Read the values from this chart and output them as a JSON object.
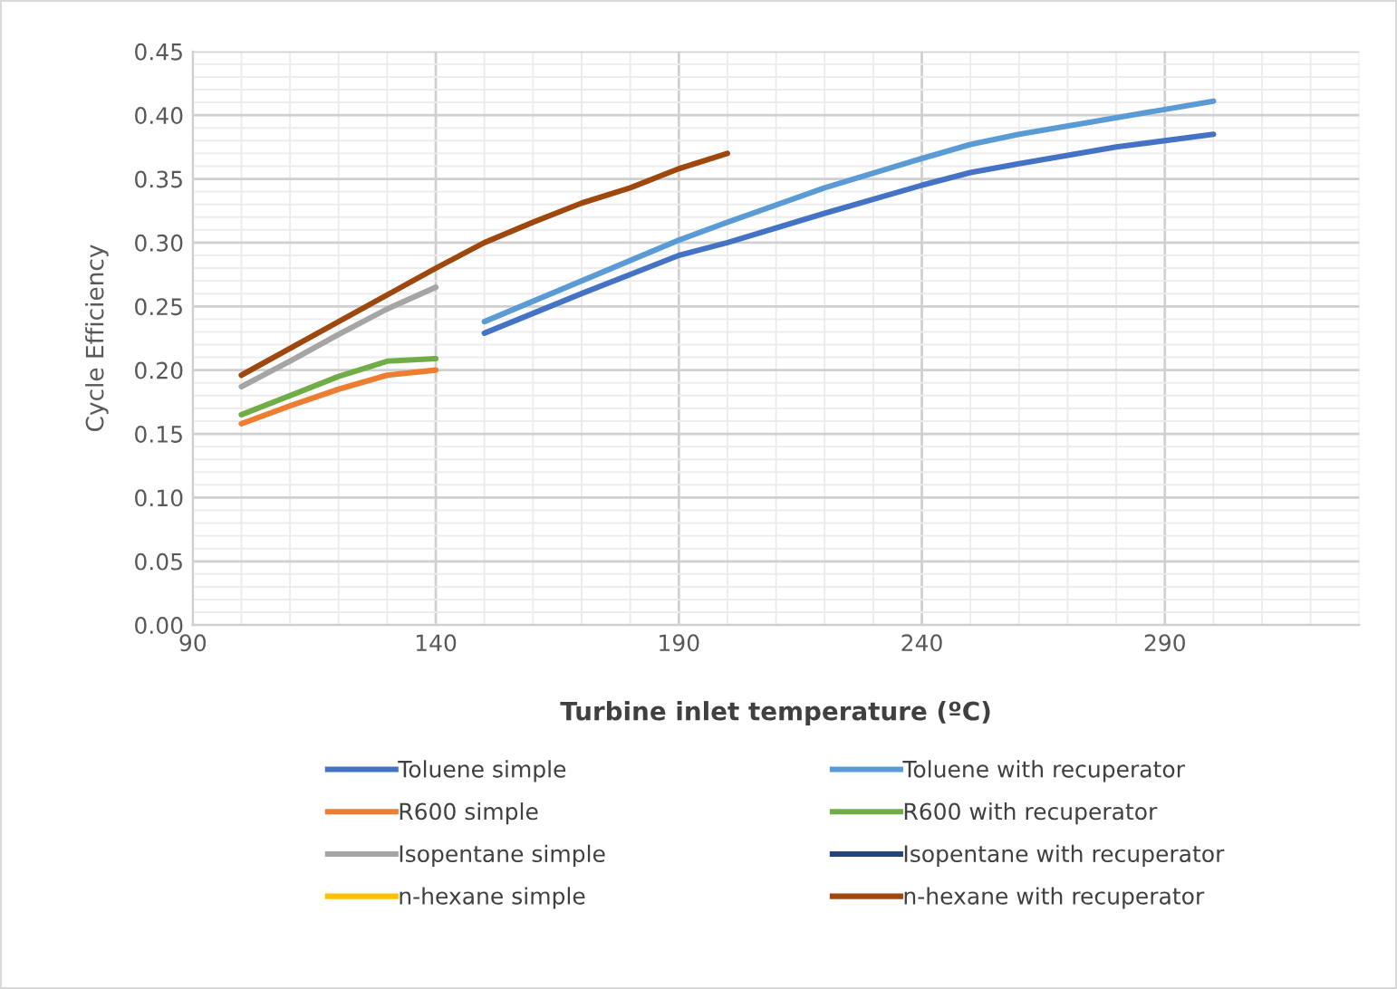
{
  "chart_data": {
    "type": "line",
    "xlabel": "Turbine inlet temperature (ºC)",
    "ylabel": "Cycle Efficiency",
    "xlim": [
      90,
      330
    ],
    "xticks": [
      90,
      140,
      190,
      240,
      290
    ],
    "ylim": [
      0,
      0.45
    ],
    "yticks": [
      {
        "value": 0,
        "label": "0.00"
      },
      {
        "value": 0.05,
        "label": "0.05"
      },
      {
        "value": 0.1,
        "label": "0.10"
      },
      {
        "value": 0.15,
        "label": "0.15"
      },
      {
        "value": 0.2,
        "label": "0.20"
      },
      {
        "value": 0.25,
        "label": "0.25"
      },
      {
        "value": 0.3,
        "label": "0.30"
      },
      {
        "value": 0.35,
        "label": "0.35"
      },
      {
        "value": 0.4,
        "label": "0.40"
      },
      {
        "value": 0.45,
        "label": "0.45"
      }
    ],
    "grid": true,
    "legend": "bottom",
    "marker": "none",
    "line_style": "solid",
    "series": [
      {
        "name": "Toluene simple",
        "color": "#4472c4",
        "x": [
          150,
          170,
          190,
          200,
          220,
          240,
          250,
          260,
          280,
          300
        ],
        "values": [
          0.229,
          0.26,
          0.29,
          0.3,
          0.323,
          0.345,
          0.355,
          0.362,
          0.375,
          0.385
        ]
      },
      {
        "name": "Toluene with recuperator",
        "color": "#5b9bd5",
        "x": [
          150,
          170,
          190,
          200,
          220,
          240,
          250,
          260,
          280,
          300
        ],
        "values": [
          0.238,
          0.27,
          0.302,
          0.316,
          0.343,
          0.366,
          0.377,
          0.385,
          0.398,
          0.411
        ]
      },
      {
        "name": "R600 simple",
        "color": "#ed7d31",
        "x": [
          100,
          110,
          120,
          130,
          140
        ],
        "values": [
          0.158,
          0.172,
          0.185,
          0.196,
          0.2
        ]
      },
      {
        "name": "R600 with recuperator",
        "color": "#70ad47",
        "x": [
          100,
          110,
          120,
          130,
          140
        ],
        "values": [
          0.165,
          0.18,
          0.195,
          0.207,
          0.209
        ]
      },
      {
        "name": "Isopentane simple",
        "color": "#a5a5a5",
        "x": [
          100,
          110,
          120,
          130,
          140
        ],
        "values": [
          0.187,
          0.207,
          0.228,
          0.248,
          0.265
        ]
      },
      {
        "name": "Isopentane with recuperator",
        "color": "#264478"
      },
      {
        "name": "n-hexane simple",
        "color": "#ffc000"
      },
      {
        "name": "n-hexane with recuperator",
        "color": "#9e480e",
        "x": [
          100,
          120,
          140,
          150,
          160,
          170,
          180,
          190,
          200
        ],
        "values": [
          0.196,
          0.238,
          0.28,
          0.3,
          0.316,
          0.331,
          0.343,
          0.358,
          0.37
        ]
      }
    ]
  }
}
